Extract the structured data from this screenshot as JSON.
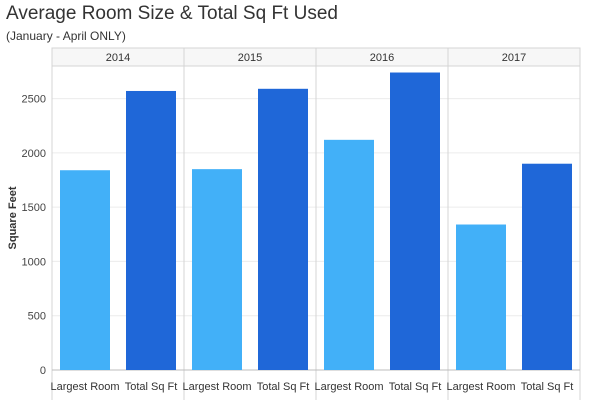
{
  "title": "Average Room Size & Total Sq Ft Used",
  "subtitle": "(January - April ONLY)",
  "chart_data": {
    "type": "bar",
    "title": "Average Room Size & Total Sq Ft Used",
    "subtitle": "(January - April ONLY)",
    "panels": [
      "2014",
      "2015",
      "2016",
      "2017"
    ],
    "categories": [
      "Largest Room",
      "Total Sq Ft"
    ],
    "colors": [
      "#42b0f8",
      "#1f67d8"
    ],
    "values": [
      [
        1840,
        2570
      ],
      [
        1850,
        2590
      ],
      [
        2120,
        2740
      ],
      [
        1340,
        1900
      ]
    ],
    "ylabel": "Square Feet",
    "xlabel": "",
    "yticks": [
      0,
      500,
      1000,
      1500,
      2000,
      2500
    ],
    "ylim": [
      0,
      2800
    ],
    "grid": true,
    "legend": "none"
  }
}
